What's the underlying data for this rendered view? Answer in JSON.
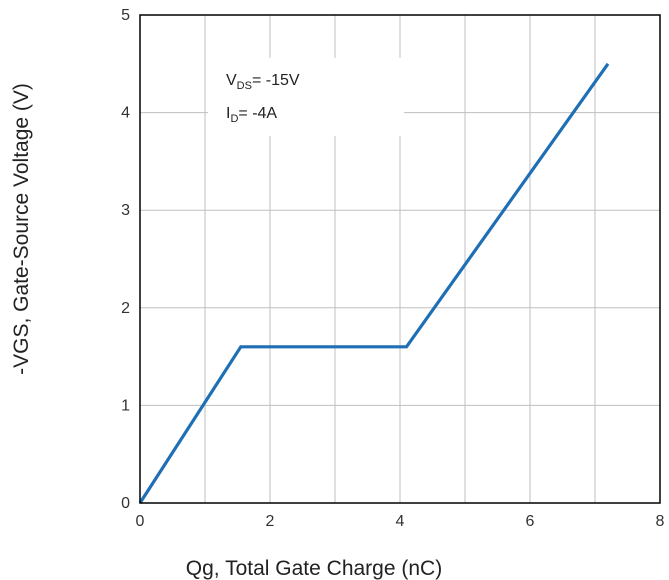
{
  "chart_data": {
    "type": "line",
    "xlabel": "Qg, Total Gate Charge (nC)",
    "ylabel": "-VGS, Gate-Source Voltage (V)",
    "xlim": [
      0,
      8
    ],
    "ylim": [
      0,
      5
    ],
    "x_ticks": [
      "0",
      "2",
      "4",
      "6",
      "8"
    ],
    "y_ticks": [
      "0",
      "1",
      "2",
      "3",
      "4",
      "5"
    ],
    "grid": true,
    "series": [
      {
        "x": [
          0,
          1.55,
          4.1,
          7.2
        ],
        "y": [
          0,
          1.6,
          1.6,
          4.5
        ]
      }
    ],
    "annotations": [
      {
        "main": "V",
        "sub": "DS",
        "rest": "= -15V"
      },
      {
        "main": "I",
        "sub": "D",
        "rest": "= -4A"
      }
    ],
    "colors": {
      "line": "#1f6fb5",
      "grid": "#bfbfbf",
      "frame": "#000000"
    }
  }
}
